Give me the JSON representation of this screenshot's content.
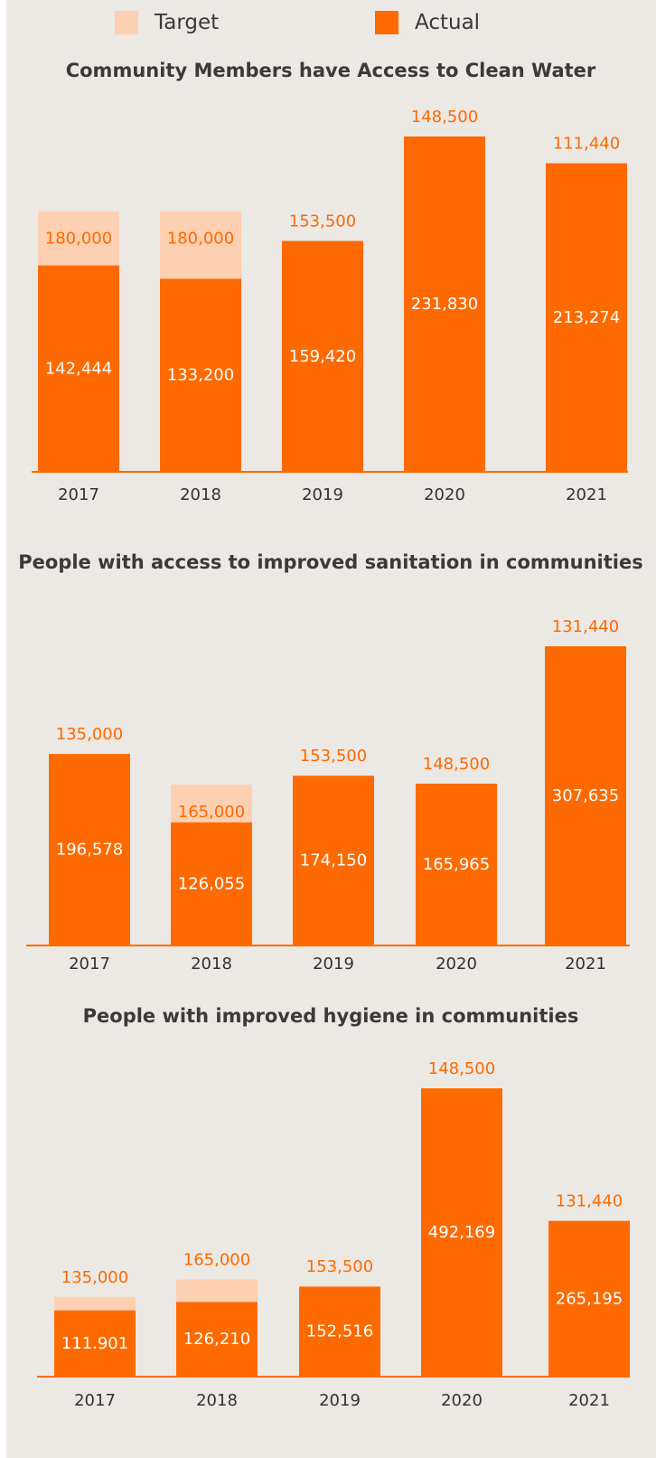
{
  "legend": {
    "target_label": "Target",
    "actual_label": "Actual"
  },
  "colors": {
    "target": "#fdd0b2",
    "actual": "#ff6a00",
    "target_text": "#ff6a00",
    "actual_text": "#ffffff",
    "axis": "#ff6a00",
    "tick_text": "#333333",
    "title_text": "#3a3a3a",
    "background": "#ece8e4"
  },
  "chart_data": [
    {
      "type": "bar",
      "title": "Community Members have Access to Clean Water",
      "categories": [
        "2017",
        "2018",
        "2019",
        "2020",
        "2021"
      ],
      "series": [
        {
          "name": "Target",
          "values": [
            180000,
            180000,
            153500,
            148500,
            111440
          ],
          "labels": [
            "180,000",
            "180,000",
            "153,500",
            "148,500",
            "111,440"
          ]
        },
        {
          "name": "Actual",
          "values": [
            142444,
            133200,
            159420,
            231830,
            213274
          ],
          "labels": [
            "142,444",
            "133,200",
            "159,420",
            "231,830",
            "213,274"
          ]
        }
      ]
    },
    {
      "type": "bar",
      "title": "People with access to improved sanitation in communities",
      "categories": [
        "2017",
        "2018",
        "2019",
        "2020",
        "2021"
      ],
      "series": [
        {
          "name": "Target",
          "values": [
            135000,
            165000,
            153500,
            148500,
            131440
          ],
          "labels": [
            "135,000",
            "165,000",
            "153,500",
            "148,500",
            "131,440"
          ]
        },
        {
          "name": "Actual",
          "values": [
            196578,
            126055,
            174150,
            165965,
            307635
          ],
          "labels": [
            "196,578",
            "126,055",
            "174,150",
            "165,965",
            "307,635"
          ]
        }
      ]
    },
    {
      "type": "bar",
      "title": "People with improved hygiene in communities",
      "categories": [
        "2017",
        "2018",
        "2019",
        "2020",
        "2021"
      ],
      "series": [
        {
          "name": "Target",
          "values": [
            135000,
            165000,
            153500,
            148500,
            131440
          ],
          "labels": [
            "135,000",
            "165,000",
            "153,500",
            "148,500",
            "131,440"
          ]
        },
        {
          "name": "Actual",
          "values": [
            111901,
            126210,
            152516,
            492169,
            265195
          ],
          "labels": [
            "111.901",
            "126,210",
            "152,516",
            "492,169",
            "265,195"
          ]
        }
      ]
    }
  ]
}
